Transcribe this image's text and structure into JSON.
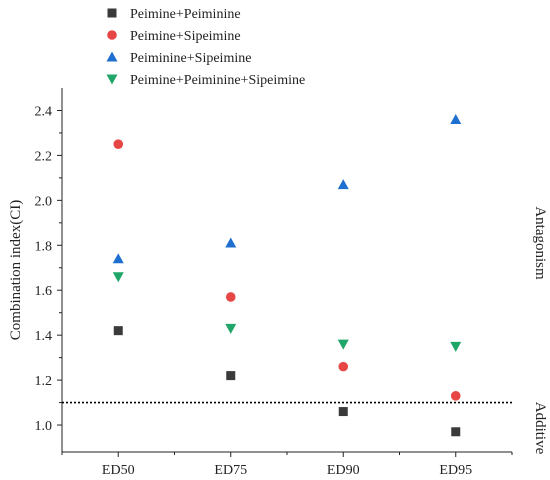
{
  "chart_data": {
    "type": "scatter",
    "categories": [
      "ED50",
      "ED75",
      "ED90",
      "ED95"
    ],
    "ylabel": "Combination index(CI)",
    "xlabel": "",
    "ylim": [
      0.88,
      2.5
    ],
    "yticks": [
      "1.0",
      "1.2",
      "1.4",
      "1.6",
      "1.8",
      "2.0",
      "2.2",
      "2.4"
    ],
    "threshold": 1.1,
    "legend_position": "top-left",
    "side_labels": {
      "upper": "Antagonism",
      "lower": "Additive"
    },
    "series": [
      {
        "name": "Peimine+Peiminine",
        "marker": "square",
        "color": "#3a3a3a",
        "values": [
          1.42,
          1.22,
          1.06,
          0.97
        ]
      },
      {
        "name": "Peimine+Sipeimine",
        "marker": "circle",
        "color": "#e84545",
        "values": [
          2.25,
          1.57,
          1.26,
          1.13
        ]
      },
      {
        "name": "Peiminine+Sipeimine",
        "marker": "triangle-up",
        "color": "#1f6fd1",
        "values": [
          1.74,
          1.81,
          2.07,
          2.36
        ]
      },
      {
        "name": "Peimine+Peiminine+Sipeimine",
        "marker": "triangle-down",
        "color": "#1fa668",
        "values": [
          1.66,
          1.43,
          1.36,
          1.35
        ]
      }
    ]
  }
}
